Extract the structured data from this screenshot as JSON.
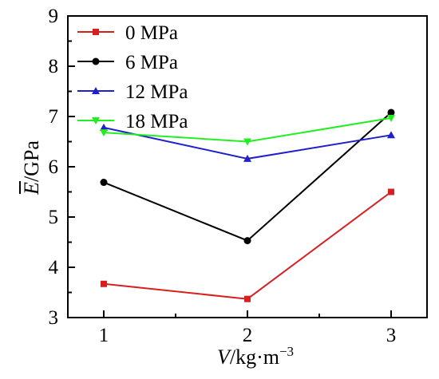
{
  "chart_data": {
    "type": "line",
    "x": [
      1,
      2,
      3
    ],
    "xlim": [
      0.75,
      3.25
    ],
    "ylim": [
      3,
      9
    ],
    "x_ticks": [
      "1",
      "2",
      "3"
    ],
    "y_ticks": [
      "3",
      "4",
      "5",
      "6",
      "7",
      "8",
      "9"
    ],
    "xlabel": {
      "var": "V",
      "unit": "/kg·m",
      "exp": "−3"
    },
    "ylabel": {
      "var": "E",
      "unit": "/GPa",
      "overline": true
    },
    "grid": false,
    "legend_position": "top-left",
    "series": [
      {
        "name": "0 MPa",
        "values": [
          3.67,
          3.37,
          5.5
        ],
        "color": "#d62020",
        "marker": "square"
      },
      {
        "name": "6 MPa",
        "values": [
          5.69,
          4.53,
          7.08
        ],
        "color": "#000000",
        "marker": "circle"
      },
      {
        "name": "12 MPa",
        "values": [
          6.78,
          6.16,
          6.63
        ],
        "color": "#1f1fcc",
        "marker": "triangle-up"
      },
      {
        "name": "18 MPa",
        "values": [
          6.68,
          6.5,
          6.97
        ],
        "color": "#22ee22",
        "marker": "triangle-down"
      }
    ]
  }
}
